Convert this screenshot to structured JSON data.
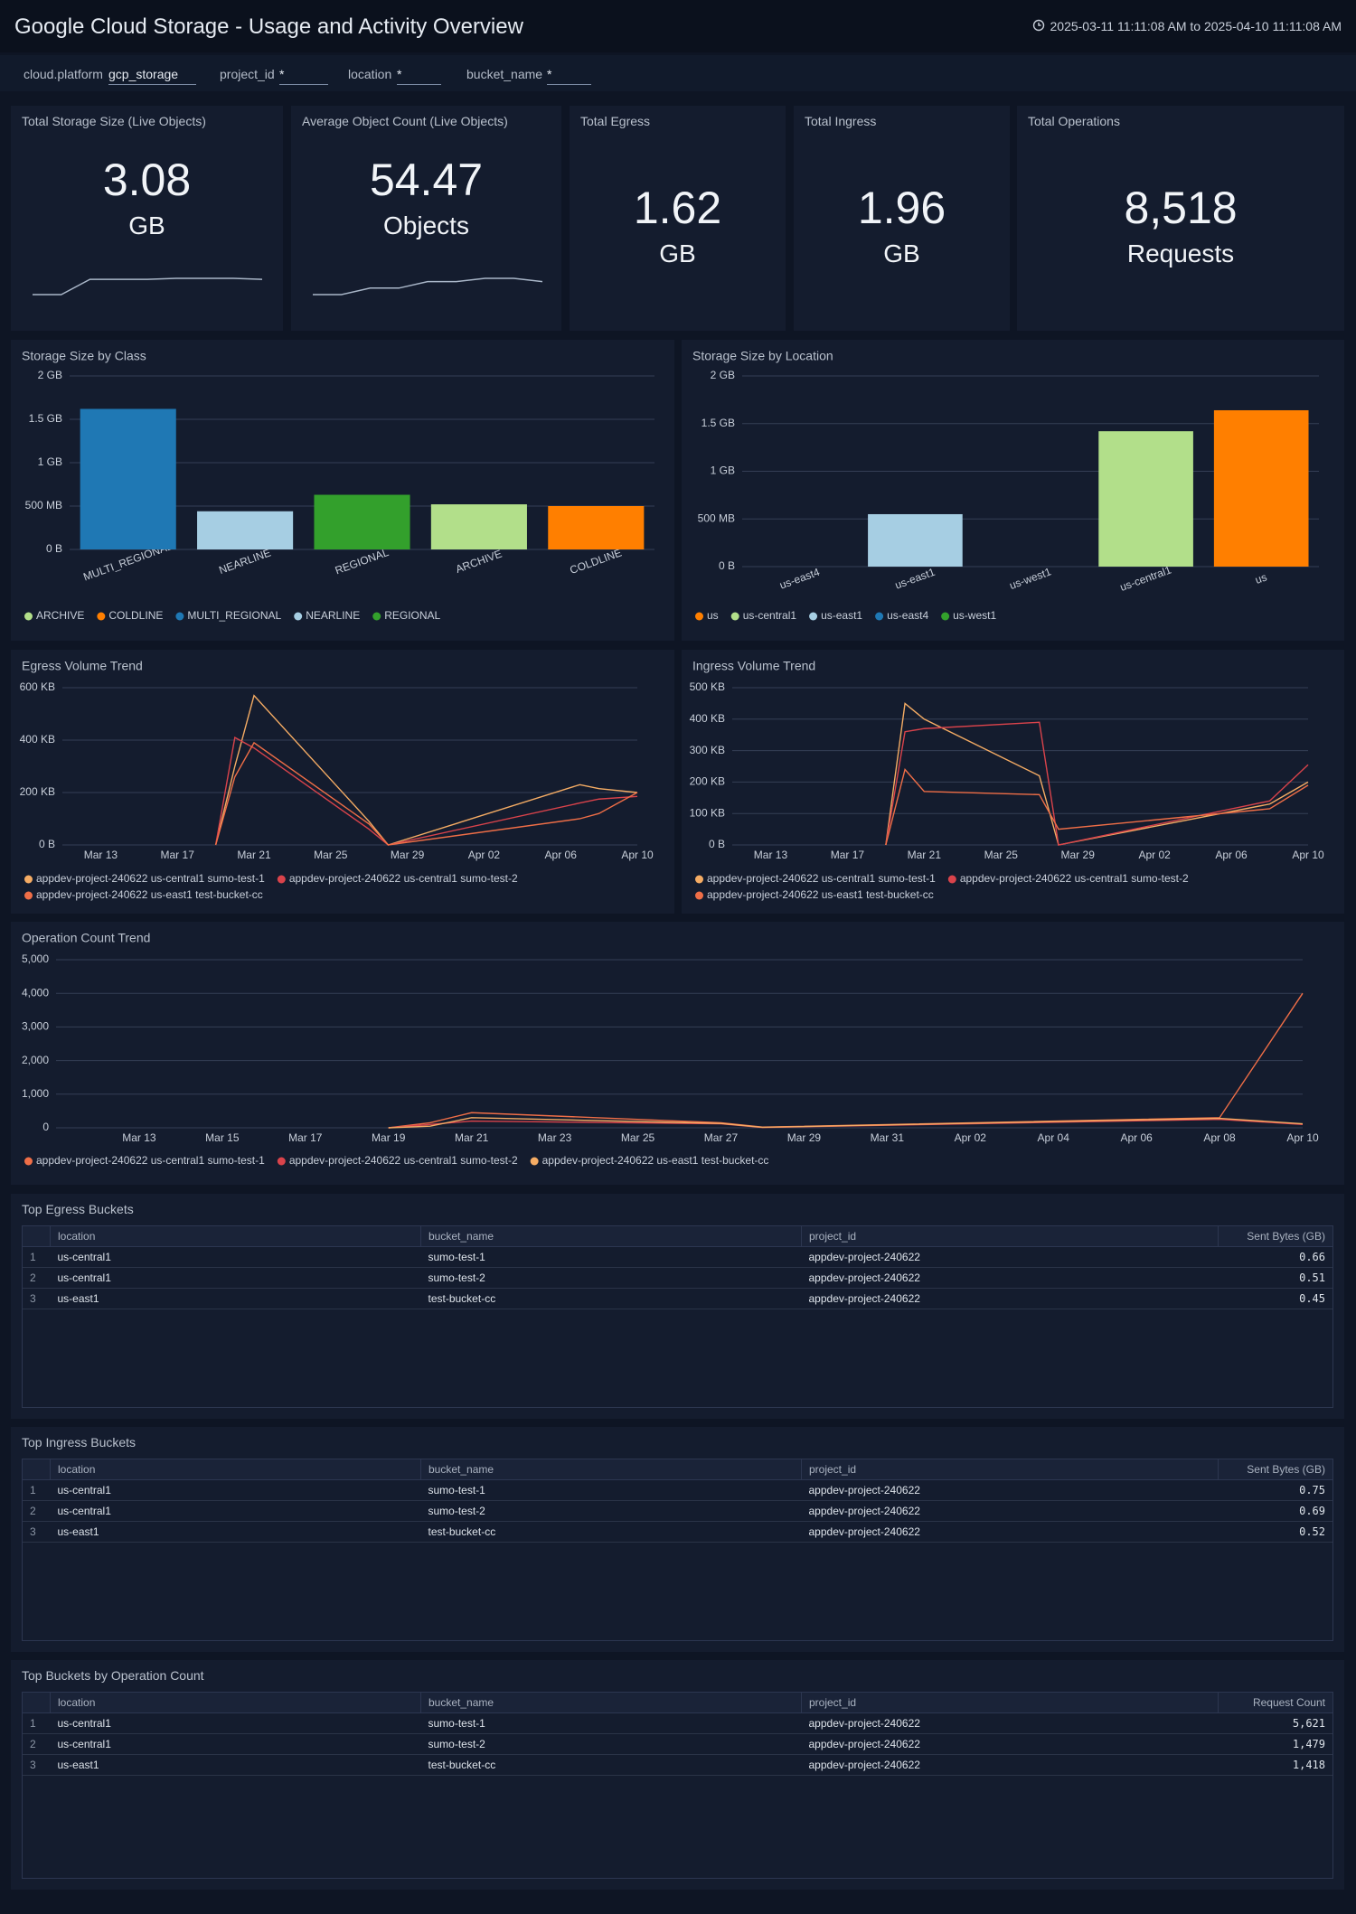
{
  "header": {
    "title": "Google Cloud Storage - Usage and Activity Overview",
    "time_range": "2025-03-11 11:11:08 AM to 2025-04-10 11:11:08 AM"
  },
  "filters": [
    {
      "label": "cloud.platform",
      "value": "gcp_storage"
    },
    {
      "label": "project_id",
      "value": "*"
    },
    {
      "label": "location",
      "value": "*"
    },
    {
      "label": "bucket_name",
      "value": "*"
    }
  ],
  "kpis": [
    {
      "title": "Total Storage Size (Live Objects)",
      "value": "3.08",
      "unit": "GB",
      "trend": [
        2.9,
        2.9,
        3.05,
        3.05,
        3.05,
        3.06,
        3.06,
        3.06,
        3.05
      ]
    },
    {
      "title": "Average Object Count (Live Objects)",
      "value": "54.47",
      "unit": "Objects",
      "trend": [
        54.1,
        54.1,
        54.3,
        54.3,
        54.5,
        54.5,
        54.6,
        54.6,
        54.5
      ]
    },
    {
      "title": "Total Egress",
      "value": "1.62",
      "unit": "GB"
    },
    {
      "title": "Total Ingress",
      "value": "1.96",
      "unit": "GB"
    },
    {
      "title": "Total Operations",
      "value": "8,518",
      "unit": "Requests"
    }
  ],
  "chart_data": [
    {
      "type": "bar",
      "title": "Storage Size by Class",
      "categories": [
        "MULTI_REGIONAL",
        "NEARLINE",
        "REGIONAL",
        "ARCHIVE",
        "COLDLINE"
      ],
      "series": [
        {
          "name": "ARCHIVE",
          "color": "#b2df8a",
          "values": [
            null,
            null,
            null,
            0.52,
            null
          ]
        },
        {
          "name": "COLDLINE",
          "color": "#ff7f00",
          "values": [
            null,
            null,
            null,
            null,
            0.5
          ]
        },
        {
          "name": "MULTI_REGIONAL",
          "color": "#1f78b4",
          "values": [
            1.62,
            null,
            null,
            null,
            null
          ]
        },
        {
          "name": "NEARLINE",
          "color": "#a6cee3",
          "values": [
            null,
            0.44,
            null,
            null,
            null
          ]
        },
        {
          "name": "REGIONAL",
          "color": "#33a02c",
          "values": [
            null,
            null,
            0.63,
            null,
            null
          ]
        }
      ],
      "ylim": [
        0,
        2
      ],
      "yticks": [
        {
          "value": 0,
          "label": "0 B"
        },
        {
          "value": 0.5,
          "label": "500 MB"
        },
        {
          "value": 1,
          "label": "1 GB"
        },
        {
          "value": 1.5,
          "label": "1.5 GB"
        },
        {
          "value": 2,
          "label": "2 GB"
        }
      ],
      "grid": true
    },
    {
      "type": "bar",
      "title": "Storage Size by Location",
      "categories": [
        "us-east4",
        "us-east1",
        "us-west1",
        "us-central1",
        "us"
      ],
      "series": [
        {
          "name": "us",
          "color": "#ff7f00",
          "values": [
            null,
            null,
            null,
            null,
            1.64
          ]
        },
        {
          "name": "us-central1",
          "color": "#b2df8a",
          "values": [
            null,
            null,
            null,
            1.42,
            null
          ]
        },
        {
          "name": "us-east1",
          "color": "#a6cee3",
          "values": [
            null,
            0.55,
            null,
            null,
            null
          ]
        },
        {
          "name": "us-east4",
          "color": "#1f78b4",
          "values": [
            0,
            null,
            null,
            null,
            null
          ]
        },
        {
          "name": "us-west1",
          "color": "#33a02c",
          "values": [
            null,
            null,
            0,
            null,
            null
          ]
        }
      ],
      "ylim": [
        0,
        2
      ],
      "yticks": [
        {
          "value": 0,
          "label": "0 B"
        },
        {
          "value": 0.5,
          "label": "500 MB"
        },
        {
          "value": 1,
          "label": "1 GB"
        },
        {
          "value": 1.5,
          "label": "1.5 GB"
        },
        {
          "value": 2,
          "label": "2 GB"
        }
      ],
      "grid": true
    },
    {
      "type": "line",
      "title": "Egress Volume Trend",
      "x": [
        "Mar 19",
        "Mar 20",
        "Mar 21",
        "Mar 27",
        "Mar 28",
        "Apr 07",
        "Apr 08",
        "Apr 10"
      ],
      "series": [
        {
          "name": "appdev-project-240622 us-central1 sumo-test-1",
          "color": "#f5ac64",
          "values": [
            0,
            300,
            570,
            90,
            0,
            230,
            215,
            200
          ]
        },
        {
          "name": "appdev-project-240622 us-central1 sumo-test-2",
          "color": "#d9434b",
          "values": [
            0,
            410,
            370,
            60,
            0,
            160,
            175,
            185
          ]
        },
        {
          "name": "appdev-project-240622 us-east1 test-bucket-cc",
          "color": "#ef6e47",
          "values": [
            0,
            260,
            390,
            80,
            0,
            100,
            120,
            200
          ]
        }
      ],
      "xlim": [
        "Mar 11",
        "Apr 10"
      ],
      "xticks": [
        "Mar 13",
        "Mar 17",
        "Mar 21",
        "Mar 25",
        "Mar 29",
        "Apr 02",
        "Apr 06",
        "Apr 10"
      ],
      "ylim": [
        0,
        600
      ],
      "yticks": [
        {
          "value": 0,
          "label": "0 B"
        },
        {
          "value": 200,
          "label": "200 KB"
        },
        {
          "value": 400,
          "label": "400 KB"
        },
        {
          "value": 600,
          "label": "600 KB"
        }
      ],
      "grid": true
    },
    {
      "type": "line",
      "title": "Ingress Volume Trend",
      "x": [
        "Mar 19",
        "Mar 20",
        "Mar 21",
        "Mar 27",
        "Mar 28",
        "Apr 08",
        "Apr 10"
      ],
      "series": [
        {
          "name": "appdev-project-240622 us-central1 sumo-test-1",
          "color": "#f5ac64",
          "values": [
            0,
            450,
            400,
            220,
            0,
            130,
            200
          ]
        },
        {
          "name": "appdev-project-240622 us-central1 sumo-test-2",
          "color": "#d9434b",
          "values": [
            0,
            360,
            370,
            390,
            0,
            140,
            255
          ]
        },
        {
          "name": "appdev-project-240622 us-east1 test-bucket-cc",
          "color": "#ef6e47",
          "values": [
            0,
            240,
            170,
            160,
            50,
            115,
            190
          ]
        }
      ],
      "xlim": [
        "Mar 11",
        "Apr 10"
      ],
      "xticks": [
        "Mar 13",
        "Mar 17",
        "Mar 21",
        "Mar 25",
        "Mar 29",
        "Apr 02",
        "Apr 06",
        "Apr 10"
      ],
      "ylim": [
        0,
        500
      ],
      "yticks": [
        {
          "value": 0,
          "label": "0 B"
        },
        {
          "value": 100,
          "label": "100 KB"
        },
        {
          "value": 200,
          "label": "200 KB"
        },
        {
          "value": 300,
          "label": "300 KB"
        },
        {
          "value": 400,
          "label": "400 KB"
        },
        {
          "value": 500,
          "label": "500 KB"
        }
      ],
      "grid": true
    },
    {
      "type": "line",
      "title": "Operation Count Trend",
      "x": [
        "Mar 19",
        "Mar 20",
        "Mar 21",
        "Mar 27",
        "Mar 28",
        "Apr 08",
        "Apr 10"
      ],
      "series": [
        {
          "name": "appdev-project-240622 us-central1 sumo-test-1",
          "color": "#ef6e47",
          "values": [
            0,
            150,
            450,
            150,
            20,
            300,
            4000
          ]
        },
        {
          "name": "appdev-project-240622 us-central1 sumo-test-2",
          "color": "#d9434b",
          "values": [
            0,
            100,
            200,
            120,
            10,
            250,
            100
          ]
        },
        {
          "name": "appdev-project-240622 us-east1 test-bucket-cc",
          "color": "#f5ac64",
          "values": [
            0,
            50,
            300,
            130,
            15,
            280,
            120
          ]
        }
      ],
      "xlim": [
        "Mar 11",
        "Apr 10"
      ],
      "xticks": [
        "Mar 13",
        "Mar 15",
        "Mar 17",
        "Mar 19",
        "Mar 21",
        "Mar 23",
        "Mar 25",
        "Mar 27",
        "Mar 29",
        "Mar 31",
        "Apr 02",
        "Apr 04",
        "Apr 06",
        "Apr 08",
        "Apr 10"
      ],
      "ylim": [
        0,
        5000
      ],
      "yticks": [
        0,
        {
          "value": 1000,
          "label": "1,000"
        },
        {
          "value": 2000,
          "label": "2,000"
        },
        {
          "value": 3000,
          "label": "3,000"
        },
        {
          "value": 4000,
          "label": "4,000"
        },
        {
          "value": 5000,
          "label": "5,000"
        }
      ],
      "grid": true
    }
  ],
  "tables": [
    {
      "title": "Top Egress Buckets",
      "columns": [
        "location",
        "bucket_name",
        "project_id",
        "Sent Bytes (GB)"
      ],
      "rows": [
        [
          "1",
          "us-central1",
          "sumo-test-1",
          "appdev-project-240622",
          "0.66"
        ],
        [
          "2",
          "us-central1",
          "sumo-test-2",
          "appdev-project-240622",
          "0.51"
        ],
        [
          "3",
          "us-east1",
          "test-bucket-cc",
          "appdev-project-240622",
          "0.45"
        ]
      ]
    },
    {
      "title": "Top Ingress Buckets",
      "columns": [
        "location",
        "bucket_name",
        "project_id",
        "Sent Bytes (GB)"
      ],
      "rows": [
        [
          "1",
          "us-central1",
          "sumo-test-1",
          "appdev-project-240622",
          "0.75"
        ],
        [
          "2",
          "us-central1",
          "sumo-test-2",
          "appdev-project-240622",
          "0.69"
        ],
        [
          "3",
          "us-east1",
          "test-bucket-cc",
          "appdev-project-240622",
          "0.52"
        ]
      ]
    },
    {
      "title": "Top Buckets by Operation Count",
      "columns": [
        "location",
        "bucket_name",
        "project_id",
        "Request Count"
      ],
      "rows": [
        [
          "1",
          "us-central1",
          "sumo-test-1",
          "appdev-project-240622",
          "5,621"
        ],
        [
          "2",
          "us-central1",
          "sumo-test-2",
          "appdev-project-240622",
          "1,479"
        ],
        [
          "3",
          "us-east1",
          "test-bucket-cc",
          "appdev-project-240622",
          "1,418"
        ]
      ]
    }
  ]
}
